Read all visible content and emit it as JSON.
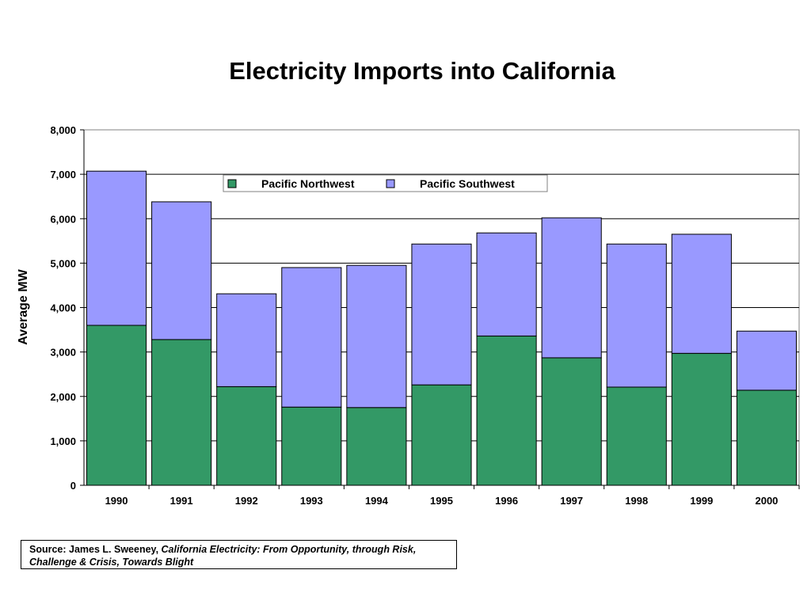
{
  "chart_data": {
    "type": "bar",
    "stacked": true,
    "title": "Electricity Imports into California",
    "ylabel": "Average MW",
    "xlabel": "",
    "categories": [
      "1990",
      "1991",
      "1992",
      "1993",
      "1994",
      "1995",
      "1996",
      "1997",
      "1998",
      "1999",
      "2000"
    ],
    "series": [
      {
        "name": "Pacific Northwest",
        "color": "#339966",
        "values": [
          3600,
          3280,
          2220,
          1760,
          1750,
          2260,
          3360,
          2870,
          2210,
          2970,
          2140
        ]
      },
      {
        "name": "Pacific Southwest",
        "color": "#9999ff",
        "values": [
          3470,
          3100,
          2090,
          3140,
          3200,
          3170,
          2320,
          3150,
          3220,
          2680,
          1330
        ]
      }
    ],
    "ylim": [
      0,
      8000
    ],
    "yticks": [
      0,
      1000,
      2000,
      3000,
      4000,
      5000,
      6000,
      7000,
      8000
    ],
    "ytick_labels": [
      "0",
      "1,000",
      "2,000",
      "3,000",
      "4,000",
      "5,000",
      "6,000",
      "7,000",
      "8,000"
    ],
    "grid": true,
    "legend_position": "top-center"
  },
  "source": {
    "prefix": "Source:  James L. Sweeney, ",
    "citation": "California Electricity:  From Opportunity, through Risk, Challenge & Crisis, Towards Blight"
  }
}
